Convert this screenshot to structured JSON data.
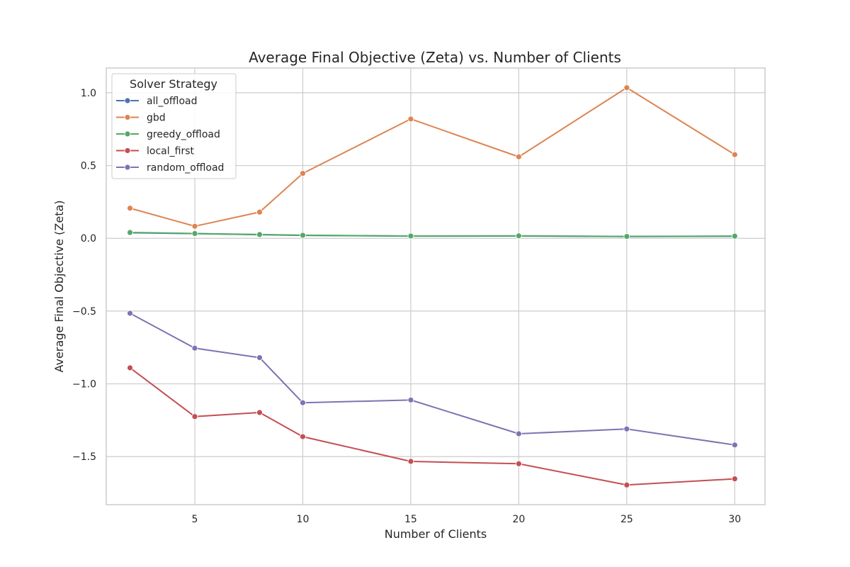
{
  "chart_data": {
    "type": "line",
    "title": "Average Final Objective (Zeta) vs. Number of Clients",
    "xlabel": "Number of Clients",
    "ylabel": "Average Final Objective (Zeta)",
    "x": [
      2,
      5,
      8,
      10,
      15,
      20,
      25,
      30
    ],
    "xlim": [
      0.9,
      31.4
    ],
    "ylim": [
      -1.83,
      1.17
    ],
    "xticks": [
      5,
      10,
      15,
      20,
      25,
      30
    ],
    "yticks": [
      1.0,
      0.5,
      0.0,
      -0.5,
      -1.0,
      -1.5
    ],
    "xtick_labels": [
      "5",
      "10",
      "15",
      "20",
      "25",
      "30"
    ],
    "ytick_labels": [
      "1.0",
      "0.5",
      "0.0",
      "−0.5",
      "−1.0",
      "−1.5"
    ],
    "grid": true,
    "legend": {
      "title": "Solver Strategy",
      "placement": "top-left"
    },
    "series": [
      {
        "name": "all_offload",
        "color": "#4c72b0",
        "values": [
          0.038,
          0.032,
          0.025,
          0.02,
          0.015,
          0.016,
          0.012,
          0.014
        ]
      },
      {
        "name": "gbd",
        "color": "#dd8452",
        "values": [
          0.207,
          0.083,
          0.18,
          0.446,
          0.82,
          0.56,
          1.035,
          0.575
        ]
      },
      {
        "name": "greedy_offload",
        "color": "#55a868",
        "values": [
          0.04,
          0.033,
          0.026,
          0.021,
          0.016,
          0.017,
          0.013,
          0.015
        ]
      },
      {
        "name": "local_first",
        "color": "#c44e52",
        "values": [
          -0.89,
          -1.225,
          -1.197,
          -1.363,
          -1.533,
          -1.549,
          -1.695,
          -1.653
        ]
      },
      {
        "name": "random_offload",
        "color": "#8172b3",
        "values": [
          -0.515,
          -0.755,
          -0.82,
          -1.13,
          -1.111,
          -1.343,
          -1.31,
          -1.42
        ]
      }
    ]
  }
}
